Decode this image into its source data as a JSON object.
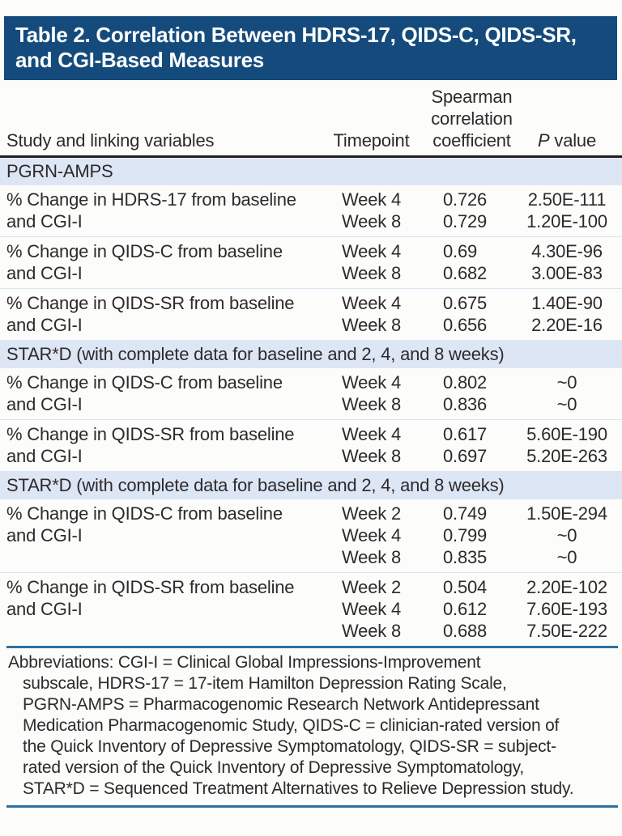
{
  "title_lines": [
    "Table 2. Correlation Between HDRS-17, QIDS-C, QIDS-SR,",
    "and CGI-Based Measures"
  ],
  "columns": {
    "study": "Study and linking variables",
    "timepoint": "Timepoint",
    "coefficient_lines": [
      "Spearman",
      "correlation",
      "coefficient"
    ],
    "p_value_italic": "P",
    "p_value_rest": "value"
  },
  "sections": [
    {
      "heading": "PGRN-AMPS",
      "groups": [
        {
          "label_lines": [
            "% Change in HDRS-17 from baseline",
            "and CGI-I"
          ],
          "entries": [
            {
              "timepoint": "Week 4",
              "coefficient": "0.726",
              "p_value": "2.50E-111"
            },
            {
              "timepoint": "Week 8",
              "coefficient": "0.729",
              "p_value": "1.20E-100"
            }
          ]
        },
        {
          "label_lines": [
            "% Change in QIDS-C from baseline",
            "and CGI-I"
          ],
          "entries": [
            {
              "timepoint": "Week 4",
              "coefficient": "0.69",
              "p_value": "4.30E-96"
            },
            {
              "timepoint": "Week 8",
              "coefficient": "0.682",
              "p_value": "3.00E-83"
            }
          ]
        },
        {
          "label_lines": [
            "% Change in QIDS-SR from baseline",
            "and CGI-I"
          ],
          "entries": [
            {
              "timepoint": "Week 4",
              "coefficient": "0.675",
              "p_value": "1.40E-90"
            },
            {
              "timepoint": "Week 8",
              "coefficient": "0.656",
              "p_value": "2.20E-16"
            }
          ]
        }
      ]
    },
    {
      "heading": "STAR*D (with complete data for baseline and 2, 4, and 8 weeks)",
      "groups": [
        {
          "label_lines": [
            "% Change in QIDS-C from baseline",
            "and CGI-I"
          ],
          "entries": [
            {
              "timepoint": "Week 4",
              "coefficient": "0.802",
              "p_value": "~0"
            },
            {
              "timepoint": "Week 8",
              "coefficient": "0.836",
              "p_value": "~0"
            }
          ]
        },
        {
          "label_lines": [
            "% Change in QIDS-SR from baseline",
            "and CGI-I"
          ],
          "entries": [
            {
              "timepoint": "Week 4",
              "coefficient": "0.617",
              "p_value": "5.60E-190"
            },
            {
              "timepoint": "Week 8",
              "coefficient": "0.697",
              "p_value": "5.20E-263"
            }
          ]
        }
      ]
    },
    {
      "heading": "STAR*D (with complete data for baseline and 2, 4, and 8 weeks)",
      "groups": [
        {
          "label_lines": [
            "% Change in QIDS-C from baseline",
            "and CGI-I"
          ],
          "entries": [
            {
              "timepoint": "Week 2",
              "coefficient": "0.749",
              "p_value": "1.50E-294"
            },
            {
              "timepoint": "Week 4",
              "coefficient": "0.799",
              "p_value": "~0"
            },
            {
              "timepoint": "Week 8",
              "coefficient": "0.835",
              "p_value": "~0"
            }
          ]
        },
        {
          "label_lines": [
            "% Change in QIDS-SR from baseline",
            "and CGI-I"
          ],
          "entries": [
            {
              "timepoint": "Week 2",
              "coefficient": "0.504",
              "p_value": "2.20E-102"
            },
            {
              "timepoint": "Week 4",
              "coefficient": "0.612",
              "p_value": "7.60E-193"
            },
            {
              "timepoint": "Week 8",
              "coefficient": "0.688",
              "p_value": "7.50E-222"
            }
          ]
        }
      ]
    }
  ],
  "footnote_lines": [
    "Abbreviations: CGI-I = Clinical Global Impressions-Improvement",
    "subscale, HDRS-17 = 17-item Hamilton Depression Rating Scale,",
    "PGRN-AMPS = Pharmacogenomic Research Network Antidepressant",
    "Medication Pharmacogenomic Study, QIDS-C = clinician-rated version of",
    "the Quick Inventory of Depressive Symptomatology, QIDS-SR = subject-",
    "rated version of the Quick Inventory of Depressive Symptomatology,",
    "STAR*D = Sequenced Treatment Alternatives to Relieve Depression study."
  ],
  "colors": {
    "banner_bg": "#144b7c",
    "banner_text": "#ffffff",
    "section_band_bg": "#dde6f5",
    "row_separator": "#d9e5f5",
    "header_rule": "#231f20",
    "footnote_rule": "#2e6f9e",
    "text": "#2e2a2b"
  }
}
